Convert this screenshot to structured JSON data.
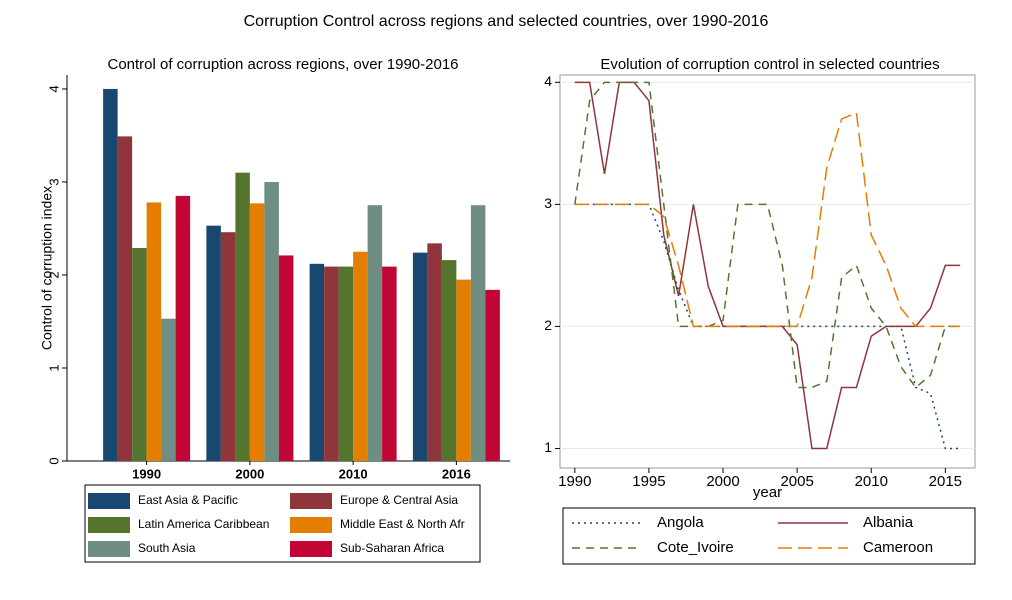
{
  "title": "Corruption Control  across regions and selected countries, over 1990-2016",
  "chart_data": [
    {
      "type": "bar",
      "title": "Control of corruption across regions, over 1990-2016",
      "ylabel": "Control of corruption index",
      "categories": [
        "1990",
        "2000",
        "2010",
        "2016"
      ],
      "series": [
        {
          "name": "East Asia & Pacific",
          "color": "#1a476f",
          "values": [
            4.0,
            2.53,
            2.12,
            2.24
          ]
        },
        {
          "name": "Europe & Central Asia",
          "color": "#90353b",
          "values": [
            3.49,
            2.46,
            2.09,
            2.34
          ]
        },
        {
          "name": "Latin America Caribbean",
          "color": "#55752f",
          "values": [
            2.29,
            3.1,
            2.09,
            2.16
          ]
        },
        {
          "name": "Middle East & North Afr",
          "color": "#e37e00",
          "values": [
            2.78,
            2.77,
            2.25,
            1.95
          ]
        },
        {
          "name": "South Asia",
          "color": "#6e8e84",
          "values": [
            1.53,
            3.0,
            2.75,
            2.75
          ]
        },
        {
          "name": "Sub-Saharan Africa",
          "color": "#c10534",
          "values": [
            2.85,
            2.21,
            2.09,
            1.84
          ]
        }
      ],
      "ylim": [
        0,
        4.15
      ],
      "yticks": [
        0,
        1,
        2,
        3,
        4
      ]
    },
    {
      "type": "line",
      "title": "Evolution of corruption control in selected countries",
      "xlabel": "year",
      "x": [
        1990,
        1991,
        1992,
        1993,
        1994,
        1995,
        1996,
        1997,
        1998,
        1999,
        2000,
        2001,
        2002,
        2003,
        2004,
        2005,
        2006,
        2007,
        2008,
        2009,
        2010,
        2011,
        2012,
        2013,
        2014,
        2015,
        2016
      ],
      "series": [
        {
          "name": "Angola",
          "color": "#1a476f",
          "style": "dot",
          "values": [
            3,
            3,
            3,
            3,
            3,
            3,
            2.7,
            2.3,
            2,
            2,
            2,
            2,
            2,
            2,
            2,
            2,
            2,
            2,
            2,
            2,
            2,
            2,
            2,
            1.5,
            1.45,
            1,
            1
          ]
        },
        {
          "name": "Albania",
          "color": "#90353b",
          "style": "solid",
          "values": [
            4,
            4,
            3.25,
            4,
            4,
            3.85,
            2.75,
            2.25,
            3,
            2.33,
            2,
            2,
            2,
            2,
            2,
            1.85,
            1,
            1,
            1.5,
            1.5,
            1.92,
            2,
            2,
            2,
            2.15,
            2.5,
            2.5
          ]
        },
        {
          "name": "Cote_Ivoire",
          "color": "#55752f",
          "style": "dash",
          "values": [
            3,
            3.85,
            4,
            4,
            4,
            4,
            3,
            2,
            2,
            2,
            2.05,
            3,
            3,
            3,
            2.5,
            1.5,
            1.5,
            1.55,
            2.4,
            2.5,
            2.15,
            2,
            1.67,
            1.5,
            1.6,
            2,
            2
          ]
        },
        {
          "name": "Cameroon",
          "color": "#e37e00",
          "style": "longdash",
          "values": [
            3,
            3,
            3,
            3,
            3,
            3,
            2.9,
            2.5,
            2,
            2,
            2,
            2,
            2,
            2,
            2,
            2,
            2.4,
            3.3,
            3.7,
            3.75,
            2.75,
            2.5,
            2.15,
            2,
            2,
            2,
            2
          ]
        }
      ],
      "xlim": [
        1989,
        2017
      ],
      "xticks": [
        1990,
        1995,
        2000,
        2005,
        2010,
        2015
      ],
      "ylim": [
        0.84,
        4.06
      ],
      "yticks": [
        1,
        2,
        3,
        4
      ],
      "grid": true
    }
  ]
}
